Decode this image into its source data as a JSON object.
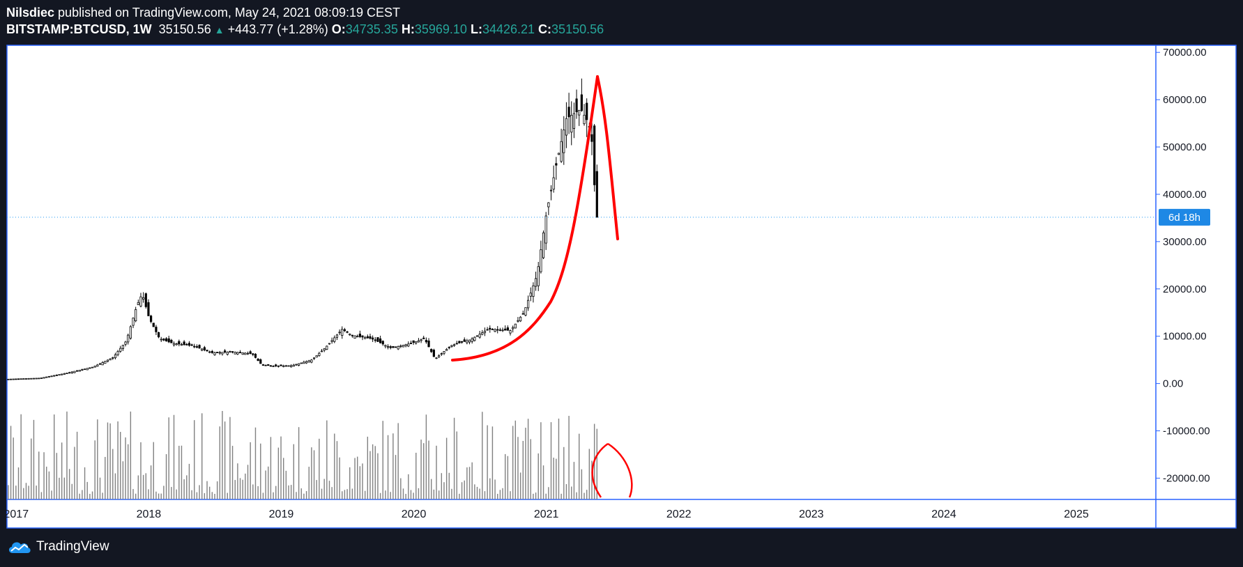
{
  "header": {
    "publisher": "Nilsdiec",
    "publish_text": "published on TradingView.com, May 24, 2021 08:09:19 CEST",
    "symbol": "BITSTAMP:BTCUSD, 1W",
    "last": "35150.56",
    "change_arrow": "▲",
    "change": "+443.77 (+1.28%)",
    "o_label": "O:",
    "o": "34735.35",
    "h_label": "H:",
    "h": "35969.10",
    "l_label": "L:",
    "l": "34426.21",
    "c_label": "C:",
    "c": "35150.56"
  },
  "countdown_badge": "6d 18h",
  "footer": {
    "brand": "TradingView"
  },
  "colors": {
    "background": "#131722",
    "pane": "#ffffff",
    "accent": "#2962ff",
    "up": "#26a69a",
    "annotation": "#ff0000",
    "badge": "#1e88e5"
  },
  "chart_data": {
    "type": "candlestick",
    "title": "BITSTAMP:BTCUSD, 1W",
    "x_tick_labels": [
      "2017",
      "2018",
      "2019",
      "2020",
      "2021",
      "2022",
      "2023",
      "2024",
      "2025"
    ],
    "x_tick_years": [
      2017,
      2018,
      2019,
      2020,
      2021,
      2022,
      2023,
      2024,
      2025
    ],
    "xlim": [
      2016.93,
      2025.6
    ],
    "y_tick_labels": [
      "70000.00",
      "60000.00",
      "50000.00",
      "40000.00",
      "30000.00",
      "20000.00",
      "10000.00",
      "0.00",
      "-10000.00",
      "-20000.00"
    ],
    "y_tick_values": [
      70000,
      60000,
      50000,
      40000,
      30000,
      20000,
      10000,
      0,
      -10000,
      -20000
    ],
    "ylim": [
      -24500,
      71500
    ],
    "last_price": 35150.56,
    "price_path": [
      [
        2016.93,
        900
      ],
      [
        2017.2,
        1150
      ],
      [
        2017.4,
        2200
      ],
      [
        2017.6,
        3500
      ],
      [
        2017.75,
        5500
      ],
      [
        2017.85,
        9000
      ],
      [
        2017.93,
        16500
      ],
      [
        2017.97,
        19000
      ],
      [
        2018.02,
        14000
      ],
      [
        2018.1,
        9500
      ],
      [
        2018.2,
        8500
      ],
      [
        2018.35,
        8000
      ],
      [
        2018.5,
        6500
      ],
      [
        2018.65,
        6700
      ],
      [
        2018.8,
        6300
      ],
      [
        2018.87,
        4000
      ],
      [
        2018.95,
        3700
      ],
      [
        2019.1,
        3800
      ],
      [
        2019.25,
        5000
      ],
      [
        2019.35,
        7500
      ],
      [
        2019.48,
        11500
      ],
      [
        2019.55,
        10200
      ],
      [
        2019.7,
        9500
      ],
      [
        2019.85,
        7500
      ],
      [
        2020.0,
        8500
      ],
      [
        2020.1,
        9500
      ],
      [
        2020.18,
        5200
      ],
      [
        2020.3,
        8000
      ],
      [
        2020.45,
        9300
      ],
      [
        2020.58,
        11500
      ],
      [
        2020.75,
        11200
      ],
      [
        2020.85,
        15000
      ],
      [
        2020.95,
        23000
      ],
      [
        2021.02,
        36000
      ],
      [
        2021.1,
        47000
      ],
      [
        2021.17,
        56000
      ],
      [
        2021.28,
        58000
      ],
      [
        2021.34,
        55000
      ],
      [
        2021.37,
        50000
      ],
      [
        2021.39,
        37000
      ],
      [
        2021.4,
        35150
      ]
    ],
    "volume_scale": [
      0,
      1
    ],
    "volume_note": "volume histogram bars along bottom of pane (relative heights)",
    "annotations": [
      {
        "type": "hand-drawn-curve",
        "desc": "red parabolic arc"
      },
      {
        "type": "hand-drawn-loop",
        "desc": "red oval around recent volume"
      }
    ]
  }
}
